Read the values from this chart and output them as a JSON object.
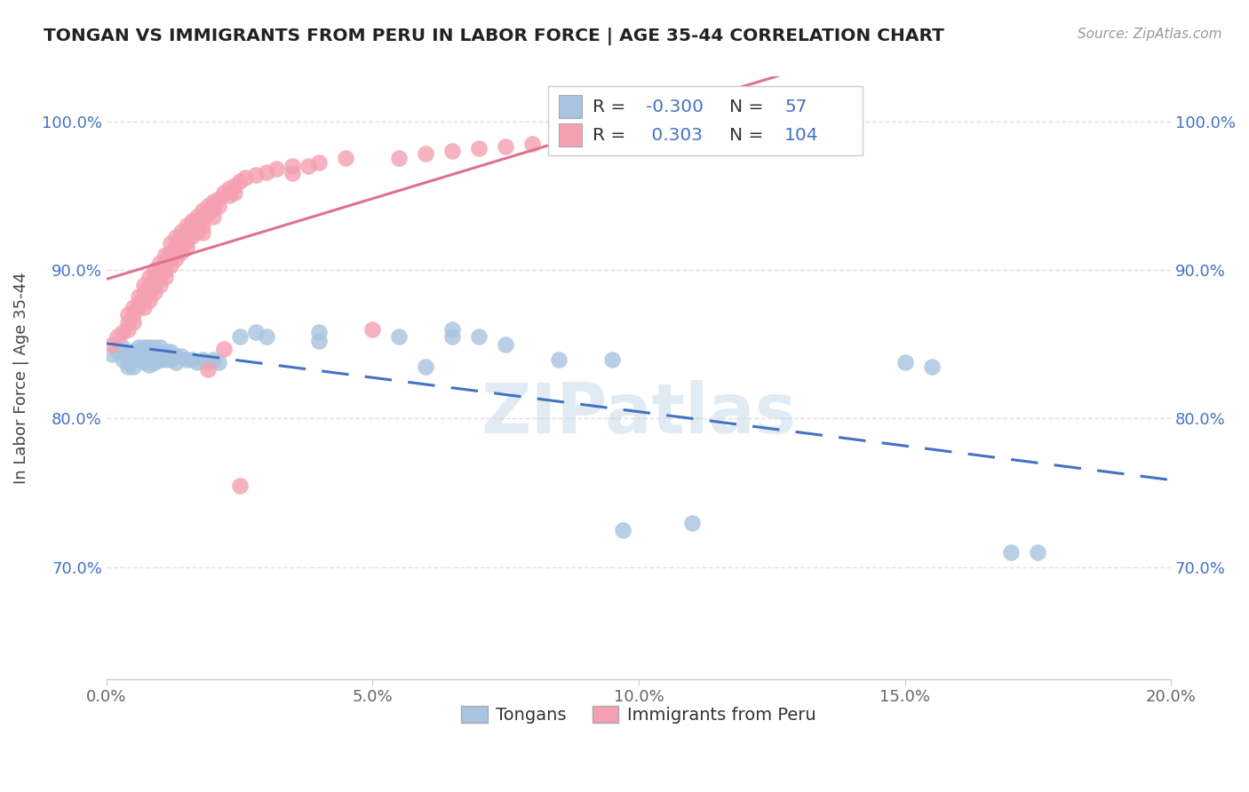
{
  "title": "TONGAN VS IMMIGRANTS FROM PERU IN LABOR FORCE | AGE 35-44 CORRELATION CHART",
  "source": "Source: ZipAtlas.com",
  "ylabel": "In Labor Force | Age 35-44",
  "xlim": [
    0.0,
    0.2
  ],
  "ylim": [
    0.625,
    1.03
  ],
  "xticklabels": [
    "0.0%",
    "5.0%",
    "10.0%",
    "15.0%",
    "20.0%"
  ],
  "xticks": [
    0.0,
    0.05,
    0.1,
    0.15,
    0.2
  ],
  "yticklabels": [
    "70.0%",
    "80.0%",
    "90.0%",
    "100.0%"
  ],
  "yticks": [
    0.7,
    0.8,
    0.9,
    1.0
  ],
  "legend_blue_label": "Tongans",
  "legend_pink_label": "Immigrants from Peru",
  "R_blue": -0.3,
  "N_blue": 57,
  "R_pink": 0.303,
  "N_pink": 104,
  "blue_color": "#a8c4e0",
  "blue_line_color": "#4472c4",
  "pink_color": "#f4a0b0",
  "pink_line_color": "#e07090",
  "blue_scatter": [
    [
      0.001,
      0.843
    ],
    [
      0.002,
      0.845
    ],
    [
      0.003,
      0.848
    ],
    [
      0.003,
      0.84
    ],
    [
      0.004,
      0.843
    ],
    [
      0.004,
      0.838
    ],
    [
      0.004,
      0.835
    ],
    [
      0.005,
      0.845
    ],
    [
      0.005,
      0.84
    ],
    [
      0.005,
      0.835
    ],
    [
      0.006,
      0.848
    ],
    [
      0.006,
      0.843
    ],
    [
      0.006,
      0.84
    ],
    [
      0.007,
      0.848
    ],
    [
      0.007,
      0.843
    ],
    [
      0.007,
      0.838
    ],
    [
      0.008,
      0.848
    ],
    [
      0.008,
      0.843
    ],
    [
      0.008,
      0.84
    ],
    [
      0.008,
      0.836
    ],
    [
      0.009,
      0.848
    ],
    [
      0.009,
      0.843
    ],
    [
      0.009,
      0.838
    ],
    [
      0.01,
      0.848
    ],
    [
      0.01,
      0.843
    ],
    [
      0.01,
      0.84
    ],
    [
      0.011,
      0.845
    ],
    [
      0.011,
      0.84
    ],
    [
      0.012,
      0.845
    ],
    [
      0.012,
      0.84
    ],
    [
      0.013,
      0.842
    ],
    [
      0.013,
      0.838
    ],
    [
      0.014,
      0.842
    ],
    [
      0.015,
      0.84
    ],
    [
      0.016,
      0.84
    ],
    [
      0.017,
      0.838
    ],
    [
      0.018,
      0.84
    ],
    [
      0.019,
      0.838
    ],
    [
      0.02,
      0.84
    ],
    [
      0.021,
      0.838
    ],
    [
      0.025,
      0.855
    ],
    [
      0.028,
      0.858
    ],
    [
      0.03,
      0.855
    ],
    [
      0.04,
      0.858
    ],
    [
      0.04,
      0.852
    ],
    [
      0.055,
      0.855
    ],
    [
      0.06,
      0.835
    ],
    [
      0.065,
      0.86
    ],
    [
      0.065,
      0.855
    ],
    [
      0.07,
      0.855
    ],
    [
      0.075,
      0.85
    ],
    [
      0.085,
      0.84
    ],
    [
      0.095,
      0.84
    ],
    [
      0.097,
      0.725
    ],
    [
      0.11,
      0.73
    ],
    [
      0.15,
      0.838
    ],
    [
      0.155,
      0.835
    ],
    [
      0.17,
      0.71
    ],
    [
      0.175,
      0.71
    ]
  ],
  "pink_scatter": [
    [
      0.001,
      0.85
    ],
    [
      0.002,
      0.855
    ],
    [
      0.003,
      0.858
    ],
    [
      0.004,
      0.87
    ],
    [
      0.004,
      0.865
    ],
    [
      0.004,
      0.86
    ],
    [
      0.005,
      0.875
    ],
    [
      0.005,
      0.87
    ],
    [
      0.005,
      0.865
    ],
    [
      0.006,
      0.882
    ],
    [
      0.006,
      0.878
    ],
    [
      0.006,
      0.875
    ],
    [
      0.007,
      0.89
    ],
    [
      0.007,
      0.885
    ],
    [
      0.007,
      0.88
    ],
    [
      0.007,
      0.875
    ],
    [
      0.008,
      0.895
    ],
    [
      0.008,
      0.89
    ],
    [
      0.008,
      0.885
    ],
    [
      0.008,
      0.88
    ],
    [
      0.009,
      0.9
    ],
    [
      0.009,
      0.895
    ],
    [
      0.009,
      0.89
    ],
    [
      0.009,
      0.885
    ],
    [
      0.01,
      0.905
    ],
    [
      0.01,
      0.9
    ],
    [
      0.01,
      0.895
    ],
    [
      0.01,
      0.89
    ],
    [
      0.011,
      0.91
    ],
    [
      0.011,
      0.905
    ],
    [
      0.011,
      0.9
    ],
    [
      0.011,
      0.895
    ],
    [
      0.012,
      0.918
    ],
    [
      0.012,
      0.912
    ],
    [
      0.012,
      0.908
    ],
    [
      0.012,
      0.903
    ],
    [
      0.013,
      0.922
    ],
    [
      0.013,
      0.917
    ],
    [
      0.013,
      0.912
    ],
    [
      0.013,
      0.908
    ],
    [
      0.014,
      0.926
    ],
    [
      0.014,
      0.921
    ],
    [
      0.014,
      0.917
    ],
    [
      0.014,
      0.912
    ],
    [
      0.015,
      0.93
    ],
    [
      0.015,
      0.925
    ],
    [
      0.015,
      0.92
    ],
    [
      0.015,
      0.915
    ],
    [
      0.016,
      0.933
    ],
    [
      0.016,
      0.928
    ],
    [
      0.016,
      0.923
    ],
    [
      0.017,
      0.936
    ],
    [
      0.017,
      0.931
    ],
    [
      0.017,
      0.926
    ],
    [
      0.018,
      0.94
    ],
    [
      0.018,
      0.935
    ],
    [
      0.018,
      0.93
    ],
    [
      0.018,
      0.925
    ],
    [
      0.019,
      0.943
    ],
    [
      0.019,
      0.938
    ],
    [
      0.019,
      0.833
    ],
    [
      0.02,
      0.946
    ],
    [
      0.02,
      0.941
    ],
    [
      0.02,
      0.936
    ],
    [
      0.021,
      0.948
    ],
    [
      0.021,
      0.943
    ],
    [
      0.022,
      0.952
    ],
    [
      0.022,
      0.847
    ],
    [
      0.023,
      0.955
    ],
    [
      0.023,
      0.95
    ],
    [
      0.024,
      0.957
    ],
    [
      0.024,
      0.952
    ],
    [
      0.025,
      0.96
    ],
    [
      0.025,
      0.755
    ],
    [
      0.026,
      0.962
    ],
    [
      0.028,
      0.964
    ],
    [
      0.03,
      0.966
    ],
    [
      0.032,
      0.968
    ],
    [
      0.035,
      0.97
    ],
    [
      0.035,
      0.965
    ],
    [
      0.038,
      0.97
    ],
    [
      0.04,
      0.972
    ],
    [
      0.045,
      0.975
    ],
    [
      0.05,
      0.86
    ],
    [
      0.055,
      0.975
    ],
    [
      0.06,
      0.978
    ],
    [
      0.065,
      0.98
    ],
    [
      0.07,
      0.982
    ],
    [
      0.075,
      0.983
    ],
    [
      0.08,
      0.985
    ],
    [
      0.085,
      0.987
    ],
    [
      0.095,
      0.988
    ],
    [
      0.11,
      0.99
    ],
    [
      0.13,
      0.992
    ],
    [
      0.135,
      0.993
    ]
  ],
  "watermark": "ZIPatlas",
  "background_color": "#ffffff",
  "grid_color": "#e0e0e0",
  "legend_text_color": "#4472c4",
  "label_color": "#666666"
}
